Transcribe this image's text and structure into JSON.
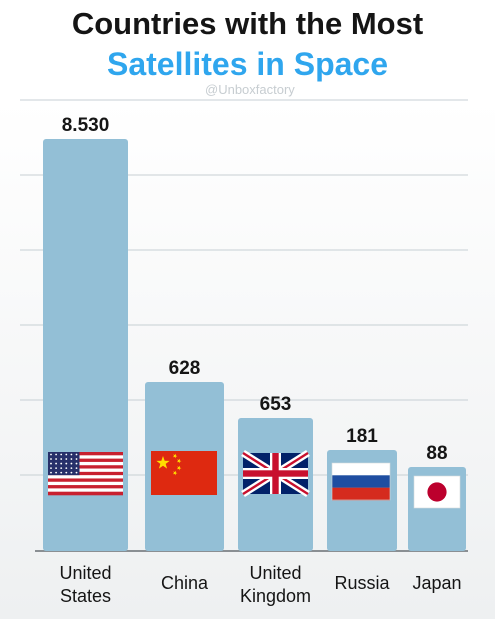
{
  "header": {
    "title_line1": "Countries with the Most",
    "title_line2": "Satellites in Space",
    "watermark": "@Unboxfactory"
  },
  "colors": {
    "bar": "#93bfd6",
    "title_accent": "#2fa6ee",
    "grid": "#c7cfd4",
    "axis": "#8a8f93"
  },
  "chart_data": {
    "type": "bar",
    "title": "Countries with the Most Satellites in Space",
    "categories": [
      "United States",
      "China",
      "United Kingdom",
      "Russia",
      "Japan"
    ],
    "category_label_lines": [
      [
        "United",
        "States"
      ],
      [
        "China"
      ],
      [
        "United",
        "Kingdom"
      ],
      [
        "Russia"
      ],
      [
        "Japan"
      ]
    ],
    "values": [
      8530,
      628,
      653,
      181,
      88
    ],
    "value_labels": [
      "8.530",
      "628",
      "653",
      "181",
      "88"
    ],
    "flags": [
      "us-flag-icon",
      "china-flag-icon",
      "uk-flag-icon",
      "russia-flag-icon",
      "japan-flag-icon"
    ],
    "grid": true,
    "xlabel": "",
    "ylabel": ""
  }
}
